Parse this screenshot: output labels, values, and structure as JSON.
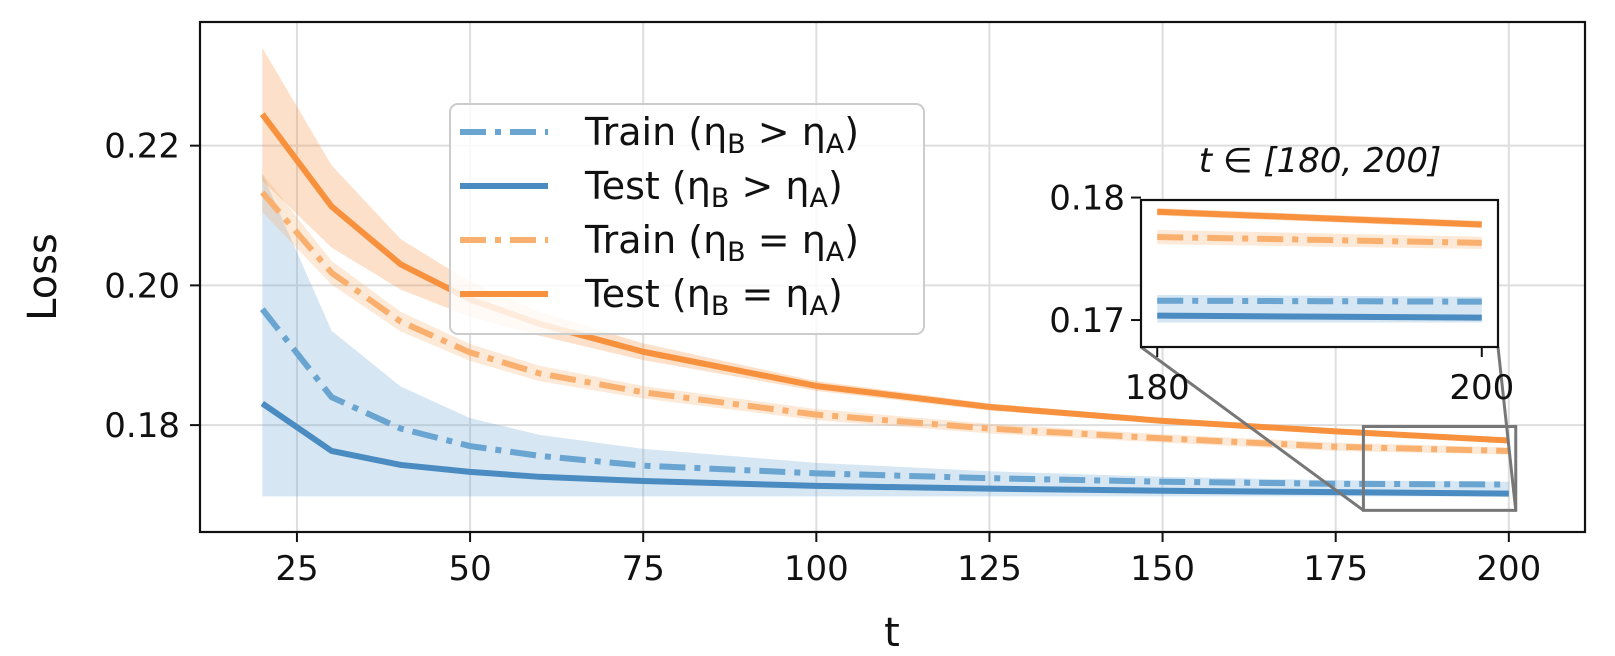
{
  "chart_data": {
    "type": "line",
    "xlabel": "t",
    "ylabel": "Loss",
    "xlim": [
      11,
      211
    ],
    "ylim": [
      0.1647,
      0.2377
    ],
    "x_ticks": [
      25,
      50,
      75,
      100,
      125,
      150,
      175,
      200
    ],
    "x_tick_labels": [
      "25",
      "50",
      "75",
      "100",
      "125",
      "150",
      "175",
      "200"
    ],
    "y_ticks": [
      0.18,
      0.2,
      0.22
    ],
    "y_tick_labels": [
      "0.18",
      "0.20",
      "0.22"
    ],
    "grid": true,
    "legend_position": "upper-center",
    "x": [
      20,
      30,
      40,
      50,
      60,
      75,
      100,
      125,
      150,
      175,
      200
    ],
    "series": [
      {
        "name": "Train (ηB > ηA)",
        "color": "#6aa4d0",
        "linestyle": "dash-dot",
        "values": [
          0.1966,
          0.184,
          0.1795,
          0.177,
          0.1756,
          0.1742,
          0.1731,
          0.1724,
          0.1719,
          0.1716,
          0.1715
        ],
        "band_upper": [
          0.216,
          0.1935,
          0.1855,
          0.181,
          0.1786,
          0.1766,
          0.1746,
          0.1734,
          0.1726,
          0.1721,
          0.1719
        ],
        "band_lower": [
          0.1698,
          0.1698,
          0.1698,
          0.1698,
          0.1698,
          0.1698,
          0.1698,
          0.1698,
          0.1698,
          0.1698,
          0.1698
        ]
      },
      {
        "name": "Test (ηB > ηA)",
        "color": "#4a8bc2",
        "linestyle": "solid",
        "values": [
          0.1831,
          0.1763,
          0.1743,
          0.1733,
          0.1726,
          0.172,
          0.1713,
          0.1709,
          0.1706,
          0.1704,
          0.1702
        ],
        "band_upper": [
          0.1831,
          0.1763,
          0.1743,
          0.1733,
          0.1726,
          0.172,
          0.1713,
          0.1709,
          0.1706,
          0.1704,
          0.1702
        ],
        "band_lower": [
          0.1831,
          0.1763,
          0.1743,
          0.1733,
          0.1726,
          0.172,
          0.1713,
          0.1709,
          0.1706,
          0.1704,
          0.1702
        ]
      },
      {
        "name": "Train (ηB = ηA)",
        "color": "#f9b06e",
        "linestyle": "dash-dot",
        "values": [
          0.2133,
          0.2018,
          0.1948,
          0.1904,
          0.1874,
          0.1847,
          0.1815,
          0.1795,
          0.1781,
          0.1769,
          0.1763
        ],
        "band_upper": [
          0.216,
          0.2035,
          0.1962,
          0.1916,
          0.1885,
          0.1856,
          0.1823,
          0.1802,
          0.1787,
          0.1775,
          0.1768
        ],
        "band_lower": [
          0.2105,
          0.2001,
          0.1934,
          0.1892,
          0.1863,
          0.1838,
          0.1807,
          0.1788,
          0.1775,
          0.1763,
          0.1758
        ]
      },
      {
        "name": "Test (ηB = ηA)",
        "color": "#f7913d",
        "linestyle": "solid",
        "values": [
          0.2245,
          0.2113,
          0.203,
          0.198,
          0.1945,
          0.1905,
          0.1856,
          0.1826,
          0.1806,
          0.1791,
          0.1778
        ],
        "band_upper": [
          0.234,
          0.2172,
          0.2066,
          0.2005,
          0.1962,
          0.1917,
          0.1863,
          0.1831,
          0.181,
          0.1794,
          0.1781
        ],
        "band_lower": [
          0.215,
          0.2054,
          0.1994,
          0.1955,
          0.1928,
          0.1893,
          0.1849,
          0.1821,
          0.1802,
          0.1788,
          0.1775
        ]
      }
    ],
    "legend": [
      {
        "label": "Train (η",
        "sub1": "B",
        "op": " > η",
        "sub2": "A",
        "close": ")"
      },
      {
        "label": "Test (η",
        "sub1": "B",
        "op": " > η",
        "sub2": "A",
        "close": ")"
      },
      {
        "label": "Train (η",
        "sub1": "B",
        "op": " = η",
        "sub2": "A",
        "close": ")"
      },
      {
        "label": "Test (η",
        "sub1": "B",
        "op": " = η",
        "sub2": "A",
        "close": ")"
      }
    ],
    "inset": {
      "title": "t ∈ [180, 200]",
      "xlim": [
        179,
        201
      ],
      "ylim": [
        0.1678,
        0.1798
      ],
      "x_ticks": [
        180,
        200
      ],
      "x_tick_labels": [
        "180",
        "200"
      ],
      "y_ticks": [
        0.17,
        0.18
      ],
      "y_tick_labels": [
        "0.17",
        "0.18"
      ],
      "zoom_region": {
        "x": [
          179,
          201
        ],
        "y": [
          0.1678,
          0.1798
        ]
      }
    }
  }
}
